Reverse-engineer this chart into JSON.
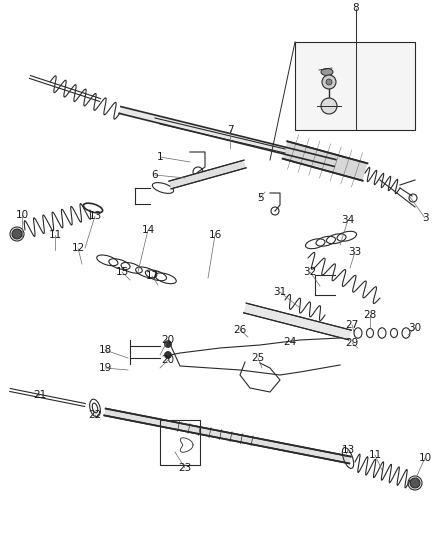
{
  "bg_color": "#ffffff",
  "fig_width": 4.38,
  "fig_height": 5.33,
  "dpi": 100,
  "line_color": "#2a2a2a",
  "label_color": "#1a1a1a",
  "label_fs": 7.5
}
